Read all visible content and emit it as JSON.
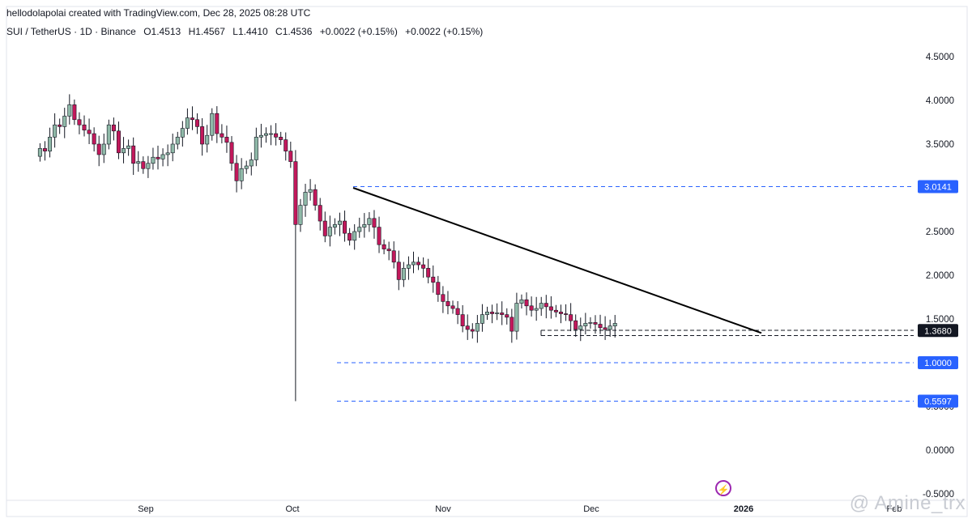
{
  "header": {
    "credit": "hellodolapolai created with TradingView.com, Dec 28, 2025 08:28 UTC",
    "symbol": "SUI / TetherUS · 1D · Binance",
    "open": "O1.4513",
    "high": "H1.4567",
    "low": "L1.4410",
    "close": "C1.4536",
    "change": "+0.0022 (+0.15%)",
    "change2": "+0.0022 (+0.15%)"
  },
  "watermark": "@ Amine_trx",
  "colors": {
    "up": "#8fb9a8",
    "down": "#c2185b",
    "level_line": "#2962ff",
    "trendline": "#000000"
  },
  "chart_data": {
    "type": "candlestick",
    "y_axis_ticks": [
      "4.5000",
      "4.0000",
      "3.5000",
      "3.0000",
      "2.5000",
      "2.0000",
      "1.5000",
      "1.0000",
      "0.5000",
      "0.0000",
      "-0.5000"
    ],
    "ylim": [
      -0.5,
      4.85
    ],
    "x_axis_labels": [
      "Sep",
      "Oct",
      "Nov",
      "Dec",
      "2026",
      "Feb"
    ],
    "price_levels": [
      {
        "label": "3.0141",
        "value": 3.0141
      },
      {
        "label": "1.0000",
        "value": 1.0
      },
      {
        "label": "0.5597",
        "value": 0.5597
      }
    ],
    "current_price": {
      "label": "1.3680",
      "value": 1.368
    },
    "support_zone": [
      1.31,
      1.37
    ],
    "trendline": {
      "from": {
        "date": "2025-10-13",
        "price": 3.0
      },
      "to": {
        "date": "2026-01-03",
        "price": 1.34
      }
    },
    "crash_wick": {
      "date": "2025-10-10",
      "low": 0.5597
    },
    "closes": [
      3.45,
      3.42,
      3.58,
      3.72,
      3.7,
      3.82,
      3.95,
      3.78,
      3.72,
      3.66,
      3.62,
      3.5,
      3.38,
      3.5,
      3.72,
      3.65,
      3.4,
      3.45,
      3.48,
      3.28,
      3.3,
      3.22,
      3.28,
      3.35,
      3.33,
      3.38,
      3.4,
      3.5,
      3.58,
      3.68,
      3.8,
      3.78,
      3.7,
      3.5,
      3.6,
      3.85,
      3.62,
      3.58,
      3.52,
      3.28,
      3.08,
      3.22,
      3.25,
      3.32,
      3.58,
      3.6,
      3.62,
      3.62,
      3.58,
      3.55,
      3.42,
      3.3,
      2.58,
      2.8,
      2.95,
      2.98,
      2.8,
      2.62,
      2.45,
      2.55,
      2.58,
      2.62,
      2.48,
      2.4,
      2.5,
      2.55,
      2.58,
      2.65,
      2.55,
      2.35,
      2.3,
      2.28,
      2.15,
      1.95,
      2.08,
      2.12,
      2.15,
      2.12,
      2.08,
      1.98,
      1.92,
      1.78,
      1.7,
      1.65,
      1.62,
      1.55,
      1.42,
      1.38,
      1.36,
      1.45,
      1.55,
      1.58,
      1.56,
      1.57,
      1.55,
      1.52,
      1.36,
      1.68,
      1.72,
      1.65,
      1.6,
      1.62,
      1.68,
      1.64,
      1.6,
      1.58,
      1.56,
      1.55,
      1.48,
      1.38,
      1.42,
      1.45,
      1.46,
      1.44,
      1.4,
      1.38,
      1.42,
      1.45
    ],
    "first_open": 3.36
  }
}
